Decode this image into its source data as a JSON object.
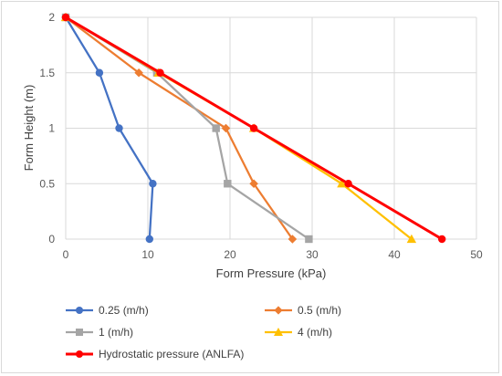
{
  "chart_data": {
    "type": "line",
    "title": "",
    "xlabel": "Form Pressure (kPa)",
    "ylabel": "Form Height (m)",
    "xlim": [
      0,
      50
    ],
    "ylim": [
      0,
      2
    ],
    "xticks": [
      0,
      10,
      20,
      30,
      40,
      50
    ],
    "yticks": [
      0,
      0.5,
      1,
      1.5,
      2
    ],
    "xtick_labels": [
      "0",
      "10",
      "20",
      "30",
      "40",
      "50"
    ],
    "ytick_labels": [
      "0",
      "0.5",
      "1",
      "1.5",
      "2"
    ],
    "grid": true,
    "legend_position": "bottom",
    "series": [
      {
        "name": "0.25 (m/h)",
        "color": "#4472c4",
        "marker": "circle",
        "points": [
          [
            10.2,
            0
          ],
          [
            10.6,
            0.5
          ],
          [
            6.5,
            1
          ],
          [
            4.1,
            1.5
          ],
          [
            0,
            2
          ]
        ]
      },
      {
        "name": "0.5 (m/h)",
        "color": "#ed7d31",
        "marker": "diamond",
        "points": [
          [
            27.6,
            0
          ],
          [
            22.9,
            0.5
          ],
          [
            19.5,
            1
          ],
          [
            8.9,
            1.5
          ],
          [
            0,
            2
          ]
        ]
      },
      {
        "name": "1 (m/h)",
        "color": "#a5a5a5",
        "marker": "square",
        "points": [
          [
            29.6,
            0
          ],
          [
            19.7,
            0.5
          ],
          [
            18.3,
            1
          ],
          [
            11.1,
            1.5
          ],
          [
            0,
            2
          ]
        ]
      },
      {
        "name": "4 (m/h)",
        "color": "#ffc000",
        "marker": "triangle",
        "points": [
          [
            42.1,
            0
          ],
          [
            33.6,
            0.5
          ],
          [
            22.9,
            1
          ],
          [
            11.3,
            1.5
          ],
          [
            0,
            2
          ]
        ]
      },
      {
        "name": "Hydrostatic pressure (ANLFA)",
        "color": "#ff0000",
        "marker": "circle",
        "points": [
          [
            45.8,
            0
          ],
          [
            34.4,
            0.5
          ],
          [
            22.9,
            1
          ],
          [
            11.5,
            1.5
          ],
          [
            0,
            2
          ]
        ]
      }
    ]
  }
}
